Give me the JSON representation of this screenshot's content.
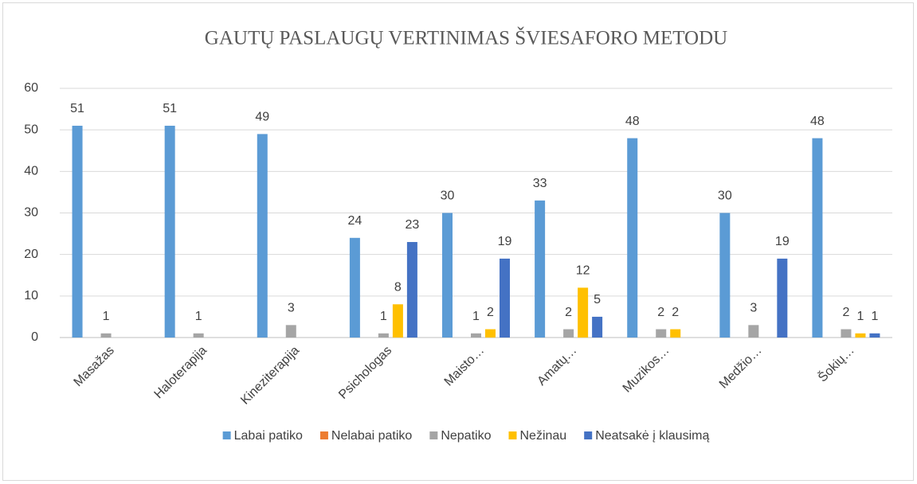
{
  "chart_data": {
    "type": "bar",
    "title": "GAUTŲ PASLAUGŲ VERTINIMAS ŠVIESAFORO METODU",
    "categories": [
      "Masažas",
      "Haloterapija",
      "Kineziterapija",
      "Psichologas",
      "Maisto…",
      "Amatų…",
      "Muzikos…",
      "Medžio…",
      "Šokių…"
    ],
    "series": [
      {
        "name": "Labai patiko",
        "color": "#5B9BD5",
        "values": [
          51,
          51,
          49,
          24,
          30,
          33,
          48,
          30,
          48
        ]
      },
      {
        "name": "Nelabai patiko",
        "color": "#ED7D31",
        "values": [
          null,
          null,
          null,
          null,
          null,
          null,
          null,
          null,
          null
        ]
      },
      {
        "name": "Nepatiko",
        "color": "#A5A5A5",
        "values": [
          1,
          1,
          3,
          1,
          1,
          2,
          2,
          3,
          2
        ]
      },
      {
        "name": "Nežinau",
        "color": "#FFC000",
        "values": [
          null,
          null,
          null,
          8,
          2,
          12,
          2,
          null,
          1
        ]
      },
      {
        "name": "Neatsakė į klausimą",
        "color": "#4472C4",
        "values": [
          null,
          null,
          null,
          23,
          19,
          5,
          null,
          19,
          1
        ]
      }
    ],
    "ylim": [
      0,
      60
    ],
    "yticks": [
      0,
      10,
      20,
      30,
      40,
      50,
      60
    ],
    "grid": true,
    "legend": "bottom"
  }
}
